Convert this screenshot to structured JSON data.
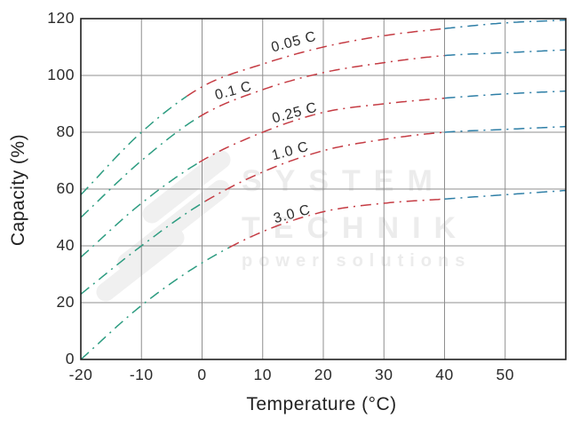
{
  "chart_data": {
    "type": "line",
    "title": "",
    "xlabel": "Temperature (°C)",
    "ylabel": "Capacity (%)",
    "xlim": [
      -20,
      60
    ],
    "ylim": [
      0,
      120
    ],
    "xticks": [
      -20,
      -10,
      0,
      10,
      20,
      30,
      40,
      50
    ],
    "yticks": [
      0,
      20,
      40,
      60,
      80,
      100,
      120
    ],
    "grid": true,
    "legend_position": "inline-curve-labels",
    "line_style": "dash-dot",
    "x": [
      -20,
      -10,
      0,
      10,
      20,
      30,
      40,
      50,
      60
    ],
    "series": [
      {
        "name": "0.05 C",
        "values": [
          58,
          80,
          96,
          104,
          110,
          114,
          116.5,
          118.5,
          119.5
        ],
        "cold_end": -2.5,
        "warm_start": 40,
        "label": {
          "t": 15.2,
          "v": 111.5,
          "rotate": -15
        }
      },
      {
        "name": "0.1 C",
        "values": [
          50,
          70,
          86,
          95,
          101,
          104.5,
          107,
          108,
          109
        ],
        "cold_end": -0.5,
        "warm_start": 40,
        "label": {
          "t": 5.2,
          "v": 94.5,
          "rotate": -15
        }
      },
      {
        "name": "0.25 C",
        "values": [
          36,
          55,
          70,
          80,
          87,
          90,
          92,
          93.5,
          94.5
        ],
        "cold_end": -0.5,
        "warm_start": 40,
        "label": {
          "t": 15.3,
          "v": 86.5,
          "rotate": -15
        }
      },
      {
        "name": "1.0 C",
        "values": [
          23,
          40,
          55,
          66,
          73.5,
          77.5,
          80,
          81,
          82
        ],
        "cold_end": 0.5,
        "warm_start": 40,
        "label": {
          "t": 14.6,
          "v": 73,
          "rotate": -15
        }
      },
      {
        "name": "3.0 C",
        "values": [
          0,
          19,
          34,
          45,
          52,
          55,
          56.5,
          58,
          59.5
        ],
        "cold_end": 4.5,
        "warm_start": 40,
        "label": {
          "t": 14.9,
          "v": 51,
          "rotate": -15
        }
      }
    ],
    "colors": {
      "cold_segment": "#2c9c80",
      "mid_segment": "#c53b43",
      "warm_segment": "#2d7ea6",
      "grid": "#8f8f8f",
      "axis": "#1f1f1f",
      "text": "#2b2b2b"
    }
  },
  "watermark": {
    "line1": "SYSTEM",
    "line2": "TECHNIK",
    "line3": "power solutions"
  }
}
